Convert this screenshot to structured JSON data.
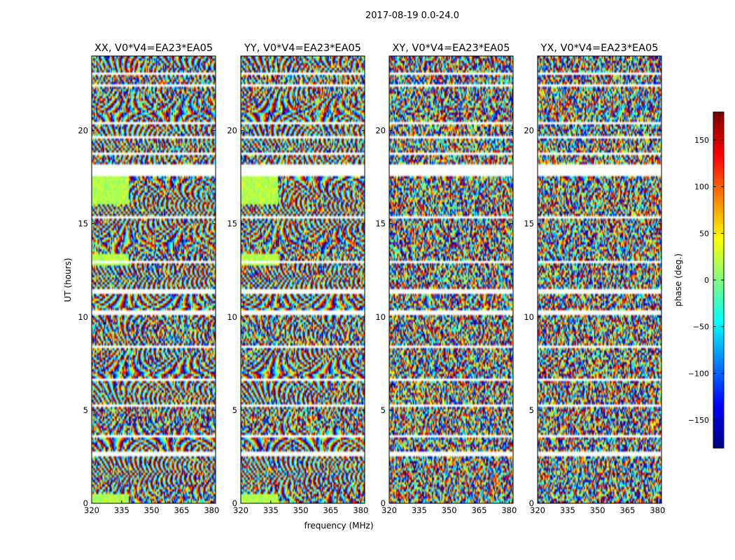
{
  "suptitle": "2017-08-19 0.0-24.0",
  "chart_data": {
    "type": "heatmap",
    "description_title": "2017-08-19 0.0-24.0",
    "xlabel": "frequency (MHz)",
    "ylabel": "UT (hours)",
    "xlim": [
      320,
      382
    ],
    "ylim": [
      0,
      24
    ],
    "xticks": [
      "320",
      "335",
      "350",
      "365",
      "380"
    ],
    "yticks": [
      "0",
      "5",
      "10",
      "15",
      "20"
    ],
    "panels": [
      {
        "title": "XX, V0*V4=EA23*EA05",
        "pol": "XX"
      },
      {
        "title": "YY, V0*V4=EA23*EA05",
        "pol": "YY"
      },
      {
        "title": "XY, V0*V4=EA23*EA05",
        "pol": "XY"
      },
      {
        "title": "YX, V0*V4=EA23*EA05",
        "pol": "YX"
      }
    ],
    "colorbar": {
      "label": "phase (deg.)",
      "range": [
        -180,
        180
      ],
      "ticks": [
        "150",
        "100",
        "50",
        "0",
        "−50",
        "−100",
        "−150"
      ],
      "tick_values": [
        150,
        100,
        50,
        0,
        -50,
        -100,
        -150
      ],
      "colormap": "jet"
    },
    "gaps_ut_hours": [
      [
        0.45,
        0.55
      ],
      [
        2.55,
        2.75
      ],
      [
        3.5,
        3.65
      ],
      [
        5.15,
        5.3
      ],
      [
        6.6,
        6.75
      ],
      [
        8.3,
        8.45
      ],
      [
        10.15,
        10.3
      ],
      [
        11.3,
        11.45
      ],
      [
        12.85,
        13.0
      ],
      [
        15.3,
        15.45
      ],
      [
        17.55,
        18.2
      ],
      [
        18.75,
        18.85
      ],
      [
        19.6,
        19.75
      ],
      [
        20.3,
        20.45
      ],
      [
        22.3,
        22.5
      ],
      [
        22.95,
        23.15
      ]
    ]
  }
}
